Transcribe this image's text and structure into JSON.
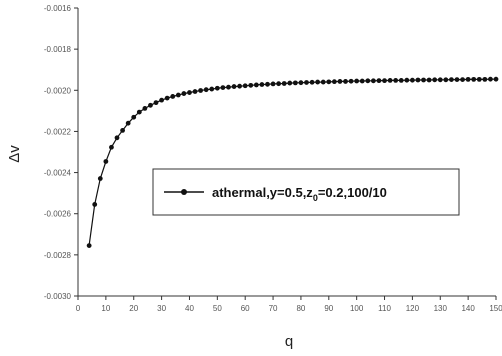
{
  "chart_data": {
    "type": "line",
    "title": "",
    "xlabel": "q",
    "ylabel": "Δv",
    "xlim": [
      0,
      150
    ],
    "ylim": [
      -0.003,
      -0.0016
    ],
    "x_ticks": [
      0,
      10,
      20,
      30,
      40,
      50,
      60,
      70,
      80,
      90,
      100,
      110,
      120,
      130,
      140,
      150
    ],
    "x_tick_labels": [
      "0",
      "10",
      "20",
      "30",
      "40",
      "50",
      "60",
      "70",
      "80",
      "90",
      "100",
      "110",
      "120",
      "130",
      "140",
      "150"
    ],
    "y_ticks": [
      -0.0016,
      -0.0018,
      -0.002,
      -0.0022,
      -0.0024,
      -0.0026,
      -0.0028,
      -0.003
    ],
    "y_tick_labels": [
      "-0.0016",
      "-0.0018",
      "-0.0020",
      "-0.0022",
      "-0.0024",
      "-0.0026",
      "-0.0028",
      "-0.0030"
    ],
    "grid": false,
    "legend_position": "center-right",
    "series": [
      {
        "name": "athermal,y=0.5,z",
        "name_subscript": "0",
        "name_suffix": "=0.2,100/10",
        "color": "#111111",
        "marker": "circle",
        "x": [
          4,
          6,
          8,
          10,
          12,
          14,
          16,
          18,
          20,
          22,
          24,
          26,
          28,
          30,
          32,
          34,
          36,
          38,
          40,
          42,
          44,
          46,
          48,
          50,
          52,
          54,
          56,
          58,
          60,
          62,
          64,
          66,
          68,
          70,
          72,
          74,
          76,
          78,
          80,
          82,
          84,
          86,
          88,
          90,
          92,
          94,
          96,
          98,
          100,
          102,
          104,
          106,
          108,
          110,
          112,
          114,
          116,
          118,
          120,
          122,
          124,
          126,
          128,
          130,
          132,
          134,
          136,
          138,
          140,
          142,
          144,
          146,
          148,
          150
        ],
        "y": [
          -0.002755,
          -0.002555,
          -0.002429,
          -0.002346,
          -0.002277,
          -0.002231,
          -0.002195,
          -0.00216,
          -0.002131,
          -0.002106,
          -0.002088,
          -0.002073,
          -0.00206,
          -0.002048,
          -0.002038,
          -0.00203,
          -0.002023,
          -0.002016,
          -0.002011,
          -0.002006,
          -0.002001,
          -0.001997,
          -0.001994,
          -0.00199,
          -0.001987,
          -0.001985,
          -0.001982,
          -0.00198,
          -0.001978,
          -0.001976,
          -0.001974,
          -0.001972,
          -0.001971,
          -0.001969,
          -0.001968,
          -0.001967,
          -0.001965,
          -0.001964,
          -0.001963,
          -0.001962,
          -0.001961,
          -0.00196,
          -0.00196,
          -0.001959,
          -0.001958,
          -0.001957,
          -0.001957,
          -0.001956,
          -0.001955,
          -0.001955,
          -0.001954,
          -0.001954,
          -0.001953,
          -0.001953,
          -0.001952,
          -0.001952,
          -0.001952,
          -0.001951,
          -0.001951,
          -0.00195,
          -0.00195,
          -0.00195,
          -0.001949,
          -0.001949,
          -0.001949,
          -0.001948,
          -0.001948,
          -0.001948,
          -0.001947,
          -0.001947,
          -0.001947,
          -0.001947,
          -0.001946,
          -0.001946
        ]
      }
    ]
  }
}
